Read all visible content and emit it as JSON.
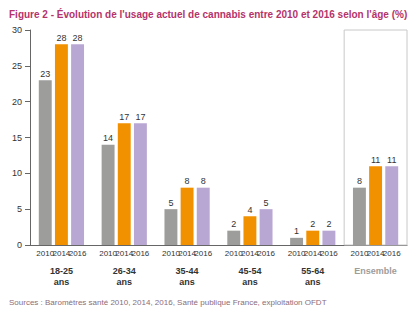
{
  "chart_data": {
    "type": "bar",
    "title": "Figure 2 - Évolution de l'usage actuel de cannabis entre 2010 et 2016 selon l'âge (%)",
    "source": "Sources : Baromètres santé 2010, 2014, 2016, Santé publique France, exploitation OFDT",
    "categories": [
      "18-25 ans",
      "26-34 ans",
      "35-44 ans",
      "45-54 ans",
      "55-64 ans",
      "Ensemble"
    ],
    "series": [
      {
        "name": "2010",
        "color": "#9d9d9c",
        "values": [
          23,
          14,
          5,
          2,
          1,
          8
        ]
      },
      {
        "name": "2014",
        "color": "#f29100",
        "values": [
          28,
          17,
          8,
          4,
          2,
          11
        ]
      },
      {
        "name": "2016",
        "color": "#b9a7d3",
        "values": [
          28,
          17,
          8,
          5,
          2,
          11
        ]
      }
    ],
    "ylim": [
      0,
      30
    ],
    "yticks": [
      0,
      5,
      10,
      15,
      20,
      25,
      30
    ],
    "grid": false,
    "data_labels": true
  }
}
